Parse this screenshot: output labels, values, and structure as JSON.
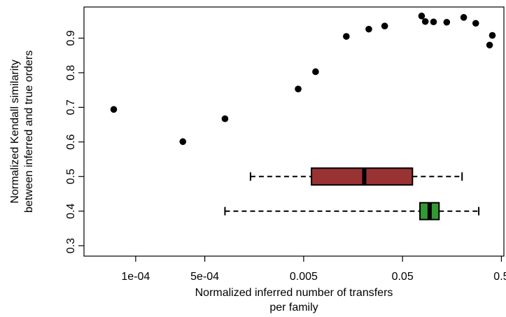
{
  "chart_data": {
    "type": "scatter",
    "title": "",
    "xlabel_lines": [
      "Normalized inferred number of transfers",
      "per family"
    ],
    "ylabel_lines": [
      "Normalized Kendall similarity",
      "between inferred and true orders"
    ],
    "x_scale": "log10",
    "xlim": [
      3e-05,
      0.53
    ],
    "ylim": [
      0.27,
      0.99
    ],
    "x_ticks": [
      {
        "value": 0.0001,
        "label": "1e-04"
      },
      {
        "value": 0.0005,
        "label": "5e-04"
      },
      {
        "value": 0.005,
        "label": "0.005"
      },
      {
        "value": 0.05,
        "label": "0.05"
      },
      {
        "value": 0.5,
        "label": "0.5"
      }
    ],
    "y_ticks": [
      {
        "value": 0.3,
        "label": "0.3"
      },
      {
        "value": 0.4,
        "label": "0.4"
      },
      {
        "value": 0.5,
        "label": "0.5"
      },
      {
        "value": 0.6,
        "label": "0.6"
      },
      {
        "value": 0.7,
        "label": "0.7"
      },
      {
        "value": 0.8,
        "label": "0.8"
      },
      {
        "value": 0.9,
        "label": "0.9"
      }
    ],
    "points": [
      {
        "x": 6e-05,
        "y": 0.694
      },
      {
        "x": 0.0003,
        "y": 0.601
      },
      {
        "x": 0.0008,
        "y": 0.667
      },
      {
        "x": 0.0044,
        "y": 0.753
      },
      {
        "x": 0.0066,
        "y": 0.803
      },
      {
        "x": 0.0135,
        "y": 0.905
      },
      {
        "x": 0.0228,
        "y": 0.926
      },
      {
        "x": 0.033,
        "y": 0.935
      },
      {
        "x": 0.078,
        "y": 0.964
      },
      {
        "x": 0.085,
        "y": 0.948
      },
      {
        "x": 0.103,
        "y": 0.947
      },
      {
        "x": 0.14,
        "y": 0.946
      },
      {
        "x": 0.208,
        "y": 0.96
      },
      {
        "x": 0.275,
        "y": 0.943
      },
      {
        "x": 0.38,
        "y": 0.88
      },
      {
        "x": 0.405,
        "y": 0.908
      }
    ],
    "boxplots": [
      {
        "y": 0.5,
        "min": 0.00145,
        "q1": 0.006,
        "median": 0.0205,
        "q3": 0.063,
        "max": 0.2,
        "color": "#993333"
      },
      {
        "y": 0.4,
        "min": 0.0008,
        "q1": 0.075,
        "median": 0.094,
        "q3": 0.117,
        "max": 0.295,
        "color": "#339933"
      }
    ],
    "grid": false,
    "legend": "none"
  }
}
